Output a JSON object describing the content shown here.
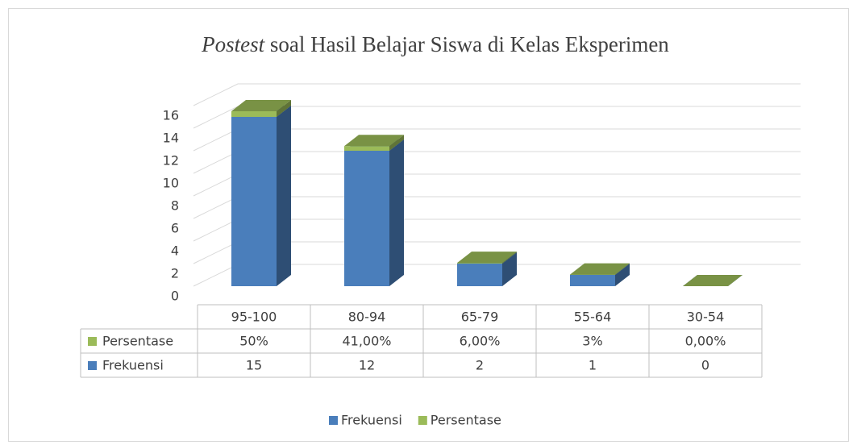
{
  "chart_data": {
    "type": "bar3d_stacked",
    "title": "Postest soal Hasil Belajar Siswa di Kelas Eksperimen",
    "categories": [
      "95-100",
      "80-94",
      "65-79",
      "55-64",
      "30-54"
    ],
    "series": [
      {
        "name": "Frekuensi",
        "color": "#4a7ebb",
        "values": [
          15,
          12,
          2,
          1,
          0
        ]
      },
      {
        "name": "Persentase",
        "color": "#9bbb59",
        "values": [
          0.5,
          0.41,
          0.06,
          0.03,
          0
        ],
        "value_labels": [
          "50%",
          "41,00%",
          "6,00%",
          "3%",
          "0,00%"
        ]
      }
    ],
    "ylim": [
      0,
      16
    ],
    "yticks": [
      0,
      2,
      4,
      6,
      8,
      10,
      12,
      14,
      16
    ],
    "grid": true,
    "legend": "bottom"
  }
}
